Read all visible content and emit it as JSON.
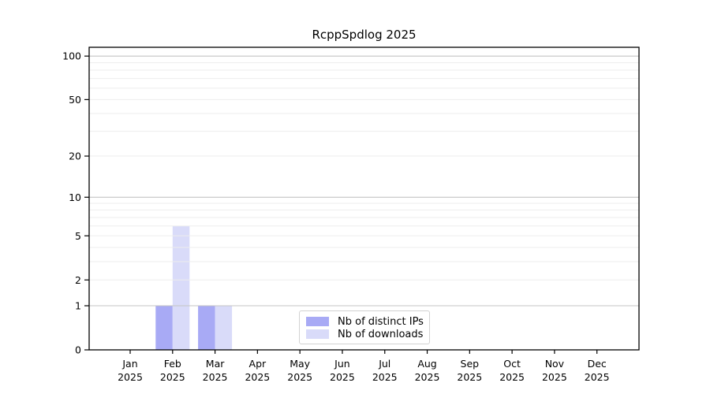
{
  "chart_data": {
    "type": "bar",
    "title": "RcppSpdlog 2025",
    "year_label": "2025",
    "categories": [
      "Jan",
      "Feb",
      "Mar",
      "Apr",
      "May",
      "Jun",
      "Jul",
      "Aug",
      "Sep",
      "Oct",
      "Nov",
      "Dec"
    ],
    "series": [
      {
        "name": "Nb of distinct IPs",
        "color": "#a8aaf5",
        "values": [
          0,
          1,
          1,
          0,
          0,
          0,
          0,
          0,
          0,
          0,
          0,
          0
        ]
      },
      {
        "name": "Nb of downloads",
        "color": "#d9dbf9",
        "values": [
          0,
          6,
          1,
          0,
          0,
          0,
          0,
          0,
          0,
          0,
          0,
          0
        ]
      }
    ],
    "yscale": "log1p",
    "ylim": [
      0,
      115
    ],
    "yticks": [
      0,
      1,
      2,
      5,
      10,
      20,
      50,
      100
    ],
    "major_gridlines": [
      1,
      10,
      100
    ],
    "minor_gridlines": [
      2,
      3,
      4,
      5,
      6,
      7,
      8,
      9,
      20,
      30,
      40,
      50,
      60,
      70,
      80,
      90
    ],
    "xlabel": "",
    "ylabel": "",
    "grid": "on",
    "legend_position": "lower center",
    "colors": {
      "background": "#ffffff",
      "axis": "#000000",
      "tick_text": "#000000",
      "major_grid": "#c4c4c4",
      "minor_grid": "#ededed"
    }
  }
}
